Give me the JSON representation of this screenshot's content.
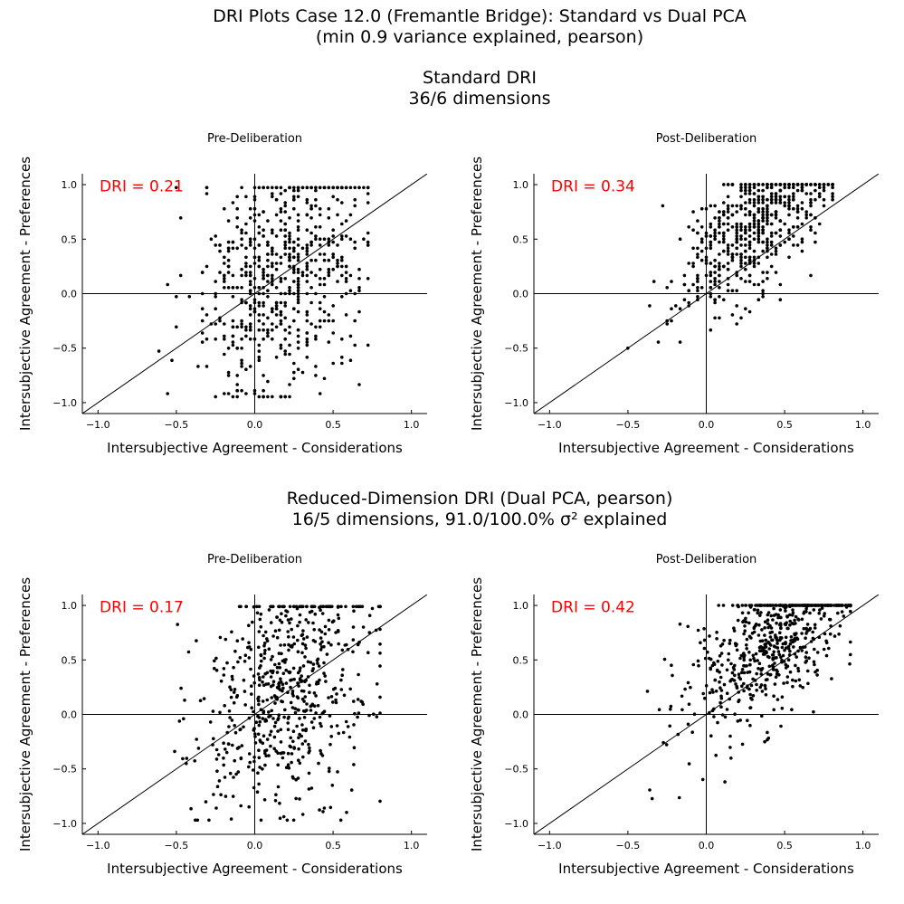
{
  "main_title_line1": "DRI Plots Case 12.0 (Fremantle Bridge): Standard vs Dual PCA",
  "main_title_line2": "(min 0.9 variance explained, pearson)",
  "section1_title_line1": "Standard DRI",
  "section1_title_line2": "36/6 dimensions",
  "section2_title_line1": "Reduced-Dimension DRI (Dual PCA, pearson)",
  "section2_title_line2": "16/5 dimensions, 91.0/100.0% σ² explained",
  "colors": {
    "points": "#000000",
    "dri_label": "#ff0000",
    "axes": "#000000"
  },
  "chart_data": [
    {
      "type": "scatter",
      "id": "standard-pre",
      "title": "Pre-Deliberation",
      "xlabel": "Intersubjective Agreement - Considerations",
      "ylabel": "Intersubjective Agreement - Preferences",
      "xlim": [
        -1.1,
        1.1
      ],
      "ylim": [
        -1.1,
        1.1
      ],
      "xticks": [
        -1.0,
        -0.5,
        0.0,
        0.5,
        1.0
      ],
      "yticks": [
        -1.0,
        -0.5,
        0.0,
        0.5,
        1.0
      ],
      "xtick_labels": [
        "−1.0",
        "−0.5",
        "0.0",
        "0.5",
        "1.0"
      ],
      "ytick_labels": [
        "−1.0",
        "−0.5",
        "0.0",
        "0.5",
        "1.0"
      ],
      "annotation": "DRI = 0.21",
      "point_summary": "approx. 630 points; values quantized on a grid; x spans about -0.7 to 0.7, y spans about -1.0 to 1.0, weak positive trend",
      "generator": {
        "seed": 1201,
        "n": 630,
        "x_mean": 0.18,
        "x_sd": 0.26,
        "x_min": -0.7,
        "x_max": 0.72,
        "slope": 0.55,
        "intercept": 0.12,
        "noise": 0.55,
        "y_min": -0.95,
        "y_max": 0.98,
        "quantize": 0.0278,
        "x_quantize": 0.0278
      },
      "reference_lines": [
        "y = x",
        "x = 0",
        "y = 0"
      ]
    },
    {
      "type": "scatter",
      "id": "standard-post",
      "title": "Post-Deliberation",
      "xlabel": "Intersubjective Agreement - Considerations",
      "ylabel": "Intersubjective Agreement - Preferences",
      "xlim": [
        -1.1,
        1.1
      ],
      "ylim": [
        -1.1,
        1.1
      ],
      "xticks": [
        -1.0,
        -0.5,
        0.0,
        0.5,
        1.0
      ],
      "yticks": [
        -1.0,
        -0.5,
        0.0,
        0.5,
        1.0
      ],
      "xtick_labels": [
        "−1.0",
        "−0.5",
        "0.0",
        "0.5",
        "1.0"
      ],
      "ytick_labels": [
        "−1.0",
        "−0.5",
        "0.0",
        "0.5",
        "1.0"
      ],
      "annotation": "DRI = 0.34",
      "point_summary": "approx. 630 points; values quantized; dense cluster near x 0.1 to 0.8, y 0.5 to 1.0; sparse tail down to x -0.65, y -1.0",
      "generator": {
        "seed": 1202,
        "n": 630,
        "x_mean": 0.33,
        "x_sd": 0.25,
        "x_min": -0.65,
        "x_max": 0.8,
        "slope": 1.05,
        "intercept": 0.3,
        "noise": 0.3,
        "y_min": -0.98,
        "y_max": 1.0,
        "quantize": 0.0278,
        "x_quantize": 0.0278
      },
      "reference_lines": [
        "y = x",
        "x = 0",
        "y = 0"
      ]
    },
    {
      "type": "scatter",
      "id": "reduced-pre",
      "title": "Pre-Deliberation",
      "xlabel": "Intersubjective Agreement - Considerations",
      "ylabel": "Intersubjective Agreement - Preferences",
      "xlim": [
        -1.1,
        1.1
      ],
      "ylim": [
        -1.1,
        1.1
      ],
      "xticks": [
        -1.0,
        -0.5,
        0.0,
        0.5,
        1.0
      ],
      "yticks": [
        -1.0,
        -0.5,
        0.0,
        0.5,
        1.0
      ],
      "xtick_labels": [
        "−1.0",
        "−0.5",
        "0.0",
        "0.5",
        "1.0"
      ],
      "ytick_labels": [
        "−1.0",
        "−0.5",
        "0.0",
        "0.5",
        "1.0"
      ],
      "annotation": "DRI = 0.17",
      "point_summary": "approx. 630 points; continuous values; x spans about -0.75 to 0.8, y spans about -1.0 to 1.0, weak positive trend",
      "generator": {
        "seed": 1203,
        "n": 630,
        "x_mean": 0.2,
        "x_sd": 0.28,
        "x_min": -0.75,
        "x_max": 0.8,
        "slope": 0.5,
        "intercept": 0.1,
        "noise": 0.55,
        "y_min": -0.97,
        "y_max": 0.99,
        "quantize": 0,
        "x_quantize": 0
      },
      "reference_lines": [
        "y = x",
        "x = 0",
        "y = 0"
      ]
    },
    {
      "type": "scatter",
      "id": "reduced-post",
      "title": "Post-Deliberation",
      "xlabel": "Intersubjective Agreement - Considerations",
      "ylabel": "Intersubjective Agreement - Preferences",
      "xlim": [
        -1.1,
        1.1
      ],
      "ylim": [
        -1.1,
        1.1
      ],
      "xticks": [
        -1.0,
        -0.5,
        0.0,
        0.5,
        1.0
      ],
      "yticks": [
        -1.0,
        -0.5,
        0.0,
        0.5,
        1.0
      ],
      "xtick_labels": [
        "−1.0",
        "−0.5",
        "0.0",
        "0.5",
        "1.0"
      ],
      "ytick_labels": [
        "−1.0",
        "−0.5",
        "0.0",
        "0.5",
        "1.0"
      ],
      "annotation": "DRI = 0.42",
      "point_summary": "approx. 630 points; continuous values; dense cluster x 0.45 to 0.9, y 0.7 to 1.0; sparse tail to x -0.7, y -1.0",
      "generator": {
        "seed": 1204,
        "n": 630,
        "x_mean": 0.42,
        "x_sd": 0.27,
        "x_min": -0.72,
        "x_max": 0.92,
        "slope": 1.05,
        "intercept": 0.25,
        "noise": 0.32,
        "y_min": -0.98,
        "y_max": 1.0,
        "quantize": 0,
        "x_quantize": 0
      },
      "reference_lines": [
        "y = x",
        "x = 0",
        "y = 0"
      ]
    }
  ]
}
